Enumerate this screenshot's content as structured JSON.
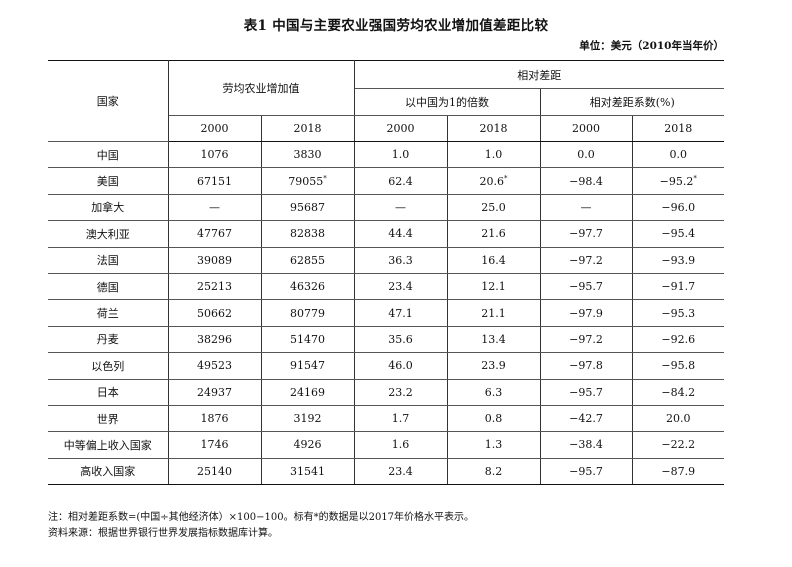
{
  "title": "表1  中国与主要农业强国劳均农业增加值差距比较",
  "unit": "单位：美元（2010年当年价）",
  "headers": {
    "country": "国家",
    "value_group": "劳均农业增加值",
    "relative_group": "相对差距",
    "ratio_group": "以中国为1的倍数",
    "coef_group": "相对差距系数(%)",
    "years": [
      "2000",
      "2018",
      "2000",
      "2018",
      "2000",
      "2018"
    ]
  },
  "rows": [
    {
      "country": "中国",
      "v2000": "1076",
      "v2018": "3830",
      "r2000": "1.0",
      "r2018": "1.0",
      "c2000": "0.0",
      "c2018": "0.0"
    },
    {
      "country": "美国",
      "v2000": "67151",
      "v2018": "79055",
      "v2018_mark": "*",
      "r2000": "62.4",
      "r2018": "20.6",
      "r2018_mark": "*",
      "c2000": "−98.4",
      "c2018": "−95.2",
      "c2018_mark": "*"
    },
    {
      "country": "加拿大",
      "v2000": "—",
      "v2018": "95687",
      "r2000": "—",
      "r2018": "25.0",
      "c2000": "—",
      "c2018": "−96.0"
    },
    {
      "country": "澳大利亚",
      "v2000": "47767",
      "v2018": "82838",
      "r2000": "44.4",
      "r2018": "21.6",
      "c2000": "−97.7",
      "c2018": "−95.4"
    },
    {
      "country": "法国",
      "v2000": "39089",
      "v2018": "62855",
      "r2000": "36.3",
      "r2018": "16.4",
      "c2000": "−97.2",
      "c2018": "−93.9"
    },
    {
      "country": "德国",
      "v2000": "25213",
      "v2018": "46326",
      "r2000": "23.4",
      "r2018": "12.1",
      "c2000": "−95.7",
      "c2018": "−91.7"
    },
    {
      "country": "荷兰",
      "v2000": "50662",
      "v2018": "80779",
      "r2000": "47.1",
      "r2018": "21.1",
      "c2000": "−97.9",
      "c2018": "−95.3"
    },
    {
      "country": "丹麦",
      "v2000": "38296",
      "v2018": "51470",
      "r2000": "35.6",
      "r2018": "13.4",
      "c2000": "−97.2",
      "c2018": "−92.6"
    },
    {
      "country": "以色列",
      "v2000": "49523",
      "v2018": "91547",
      "r2000": "46.0",
      "r2018": "23.9",
      "c2000": "−97.8",
      "c2018": "−95.8"
    },
    {
      "country": "日本",
      "v2000": "24937",
      "v2018": "24169",
      "r2000": "23.2",
      "r2018": "6.3",
      "c2000": "−95.7",
      "c2018": "−84.2"
    },
    {
      "country": "世界",
      "v2000": "1876",
      "v2018": "3192",
      "r2000": "1.7",
      "r2018": "0.8",
      "c2000": "−42.7",
      "c2018": "20.0"
    },
    {
      "country": "中等偏上收入国家",
      "v2000": "1746",
      "v2018": "4926",
      "r2000": "1.6",
      "r2018": "1.3",
      "c2000": "−38.4",
      "c2018": "−22.2"
    },
    {
      "country": "高收入国家",
      "v2000": "25140",
      "v2018": "31541",
      "r2000": "23.4",
      "r2018": "8.2",
      "c2000": "−95.7",
      "c2018": "−87.9"
    }
  ],
  "notes": {
    "note": "注：相对差距系数=(中国÷其他经济体）×100−100。标有*的数据是以2017年价格水平表示。",
    "source": "资料来源：根据世界银行世界发展指标数据库计算。"
  }
}
